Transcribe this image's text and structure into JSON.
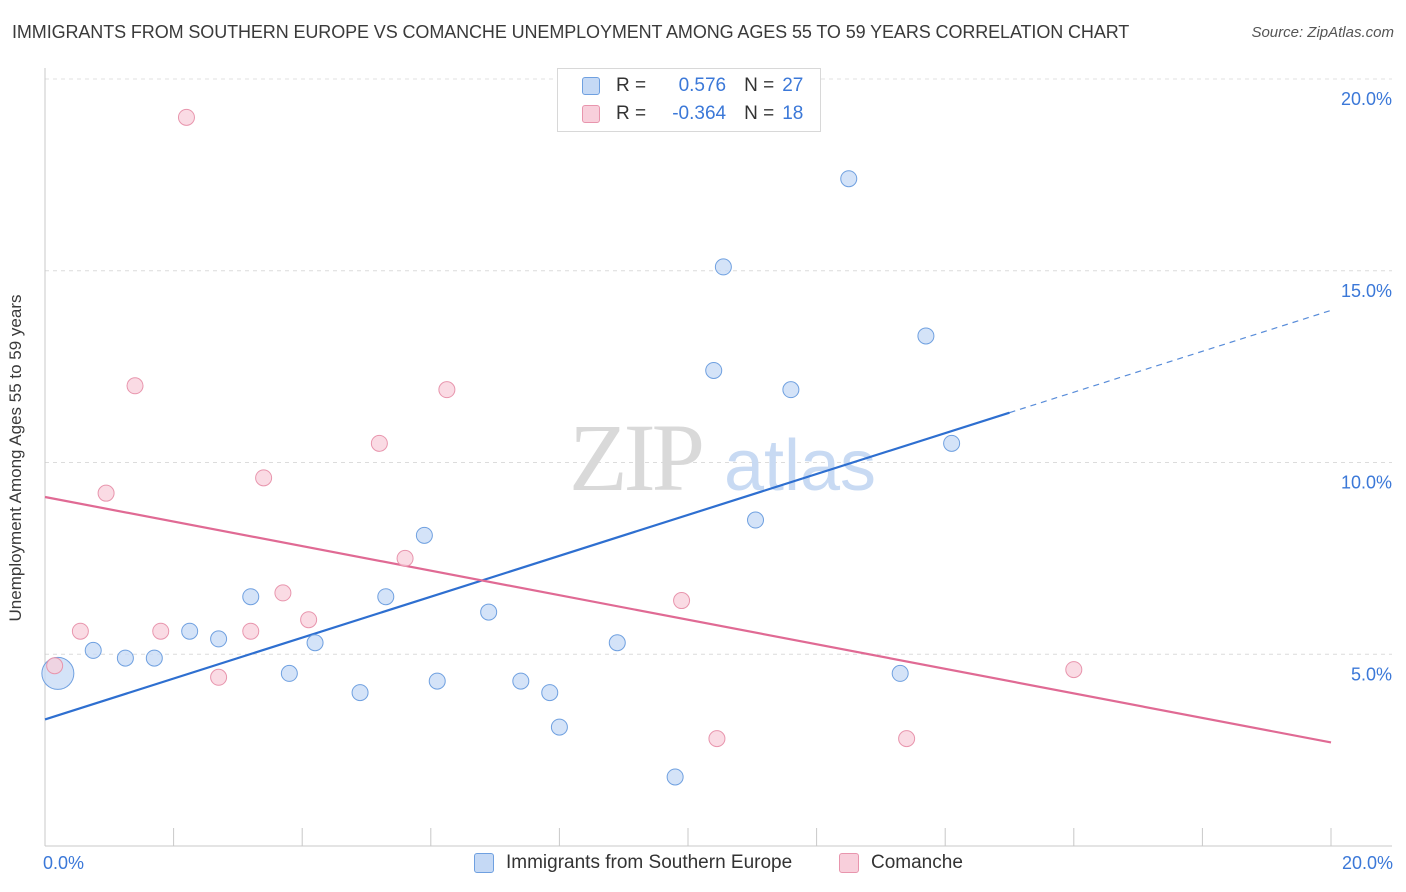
{
  "chart_data": {
    "type": "scatter",
    "title": "IMMIGRANTS FROM SOUTHERN EUROPE VS COMANCHE UNEMPLOYMENT AMONG AGES 55 TO 59 YEARS CORRELATION CHART",
    "source": "Source: ZipAtlas.com",
    "watermark": "ZIPatlas",
    "ylabel": "Unemployment Among Ages 55 to 59 years",
    "xlim": [
      0,
      20
    ],
    "ylim": [
      0,
      20
    ],
    "x_tick_labels": [
      "0.0%",
      "20.0%"
    ],
    "y_tick_labels": [
      "5.0%",
      "10.0%",
      "15.0%",
      "20.0%"
    ],
    "y_ticks": [
      5,
      10,
      15,
      20
    ],
    "legend": {
      "rows": [
        {
          "r_label": "R =",
          "r_value": "0.576",
          "n_label": "N =",
          "n_value": "27"
        },
        {
          "r_label": "R =",
          "r_value": "-0.364",
          "n_label": "N =",
          "n_value": "18"
        }
      ]
    },
    "series": [
      {
        "name": "Immigrants from Southern Europe",
        "color": "#6fa0e0",
        "fill": "#c5d9f5",
        "line_color": "#2e6fd0",
        "trend": {
          "x0": 0,
          "y0": 3.3,
          "x1": 15.0,
          "y1": 11.3,
          "dashed_to_x": 20.0
        },
        "points": [
          {
            "x": 0.2,
            "y": 4.5,
            "big": true
          },
          {
            "x": 0.75,
            "y": 5.1
          },
          {
            "x": 1.25,
            "y": 4.9
          },
          {
            "x": 1.7,
            "y": 4.9
          },
          {
            "x": 2.25,
            "y": 5.6
          },
          {
            "x": 2.7,
            "y": 5.4
          },
          {
            "x": 3.2,
            "y": 6.5
          },
          {
            "x": 3.8,
            "y": 4.5
          },
          {
            "x": 4.2,
            "y": 5.3
          },
          {
            "x": 4.9,
            "y": 4.0
          },
          {
            "x": 5.3,
            "y": 6.5
          },
          {
            "x": 5.9,
            "y": 8.1
          },
          {
            "x": 6.1,
            "y": 4.3
          },
          {
            "x": 6.9,
            "y": 6.1
          },
          {
            "x": 7.4,
            "y": 4.3
          },
          {
            "x": 7.85,
            "y": 4.0
          },
          {
            "x": 8.0,
            "y": 3.1
          },
          {
            "x": 8.9,
            "y": 5.3
          },
          {
            "x": 9.8,
            "y": 1.8
          },
          {
            "x": 10.4,
            "y": 12.4
          },
          {
            "x": 10.55,
            "y": 15.1
          },
          {
            "x": 11.05,
            "y": 8.5
          },
          {
            "x": 11.6,
            "y": 11.9
          },
          {
            "x": 12.5,
            "y": 17.4
          },
          {
            "x": 13.3,
            "y": 4.5
          },
          {
            "x": 13.7,
            "y": 13.3
          },
          {
            "x": 14.1,
            "y": 10.5
          }
        ]
      },
      {
        "name": "Comanche",
        "color": "#e895ad",
        "fill": "#f8cfdb",
        "line_color": "#e06a94",
        "trend": {
          "x0": 0,
          "y0": 9.1,
          "x1": 20.0,
          "y1": 2.7
        },
        "points": [
          {
            "x": 0.15,
            "y": 4.7
          },
          {
            "x": 0.55,
            "y": 5.6
          },
          {
            "x": 0.95,
            "y": 9.2
          },
          {
            "x": 1.4,
            "y": 12.0
          },
          {
            "x": 1.8,
            "y": 5.6
          },
          {
            "x": 2.2,
            "y": 19.0
          },
          {
            "x": 2.7,
            "y": 4.4
          },
          {
            "x": 3.2,
            "y": 5.6
          },
          {
            "x": 3.4,
            "y": 9.6
          },
          {
            "x": 3.7,
            "y": 6.6
          },
          {
            "x": 4.1,
            "y": 5.9
          },
          {
            "x": 5.2,
            "y": 10.5
          },
          {
            "x": 5.6,
            "y": 7.5
          },
          {
            "x": 6.25,
            "y": 11.9
          },
          {
            "x": 9.9,
            "y": 6.4
          },
          {
            "x": 10.45,
            "y": 2.8
          },
          {
            "x": 13.4,
            "y": 2.8
          },
          {
            "x": 16.0,
            "y": 4.6
          }
        ]
      }
    ]
  }
}
